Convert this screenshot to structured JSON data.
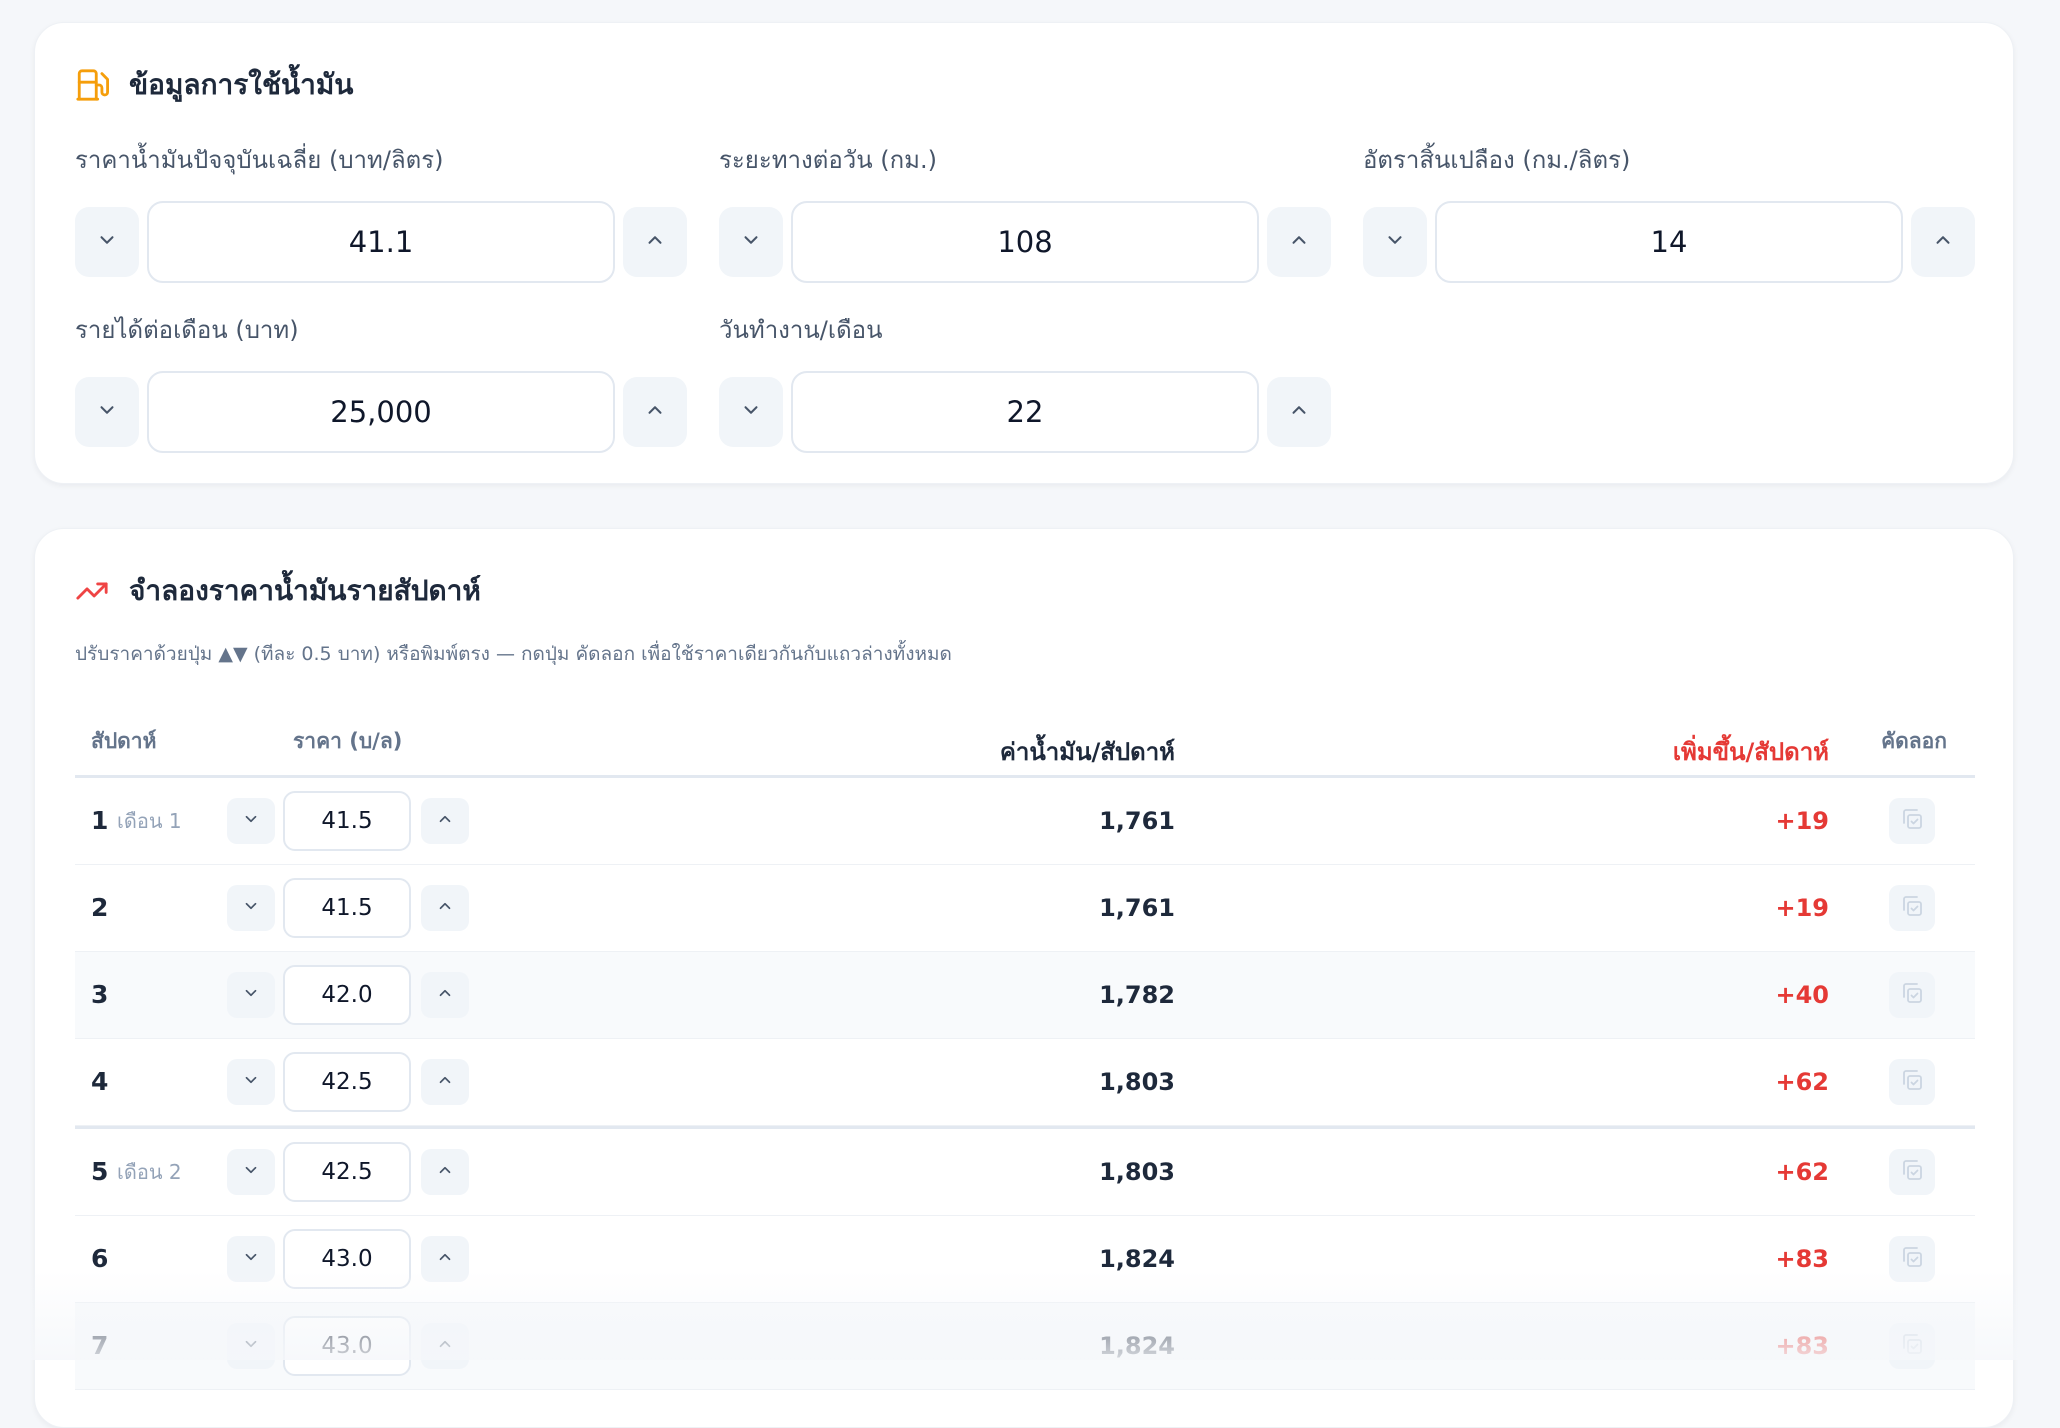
{
  "fuel_info": {
    "title": "ข้อมูลการใช้น้ำมัน",
    "fields": [
      {
        "label": "ราคาน้ำมันปัจจุบันเฉลี่ย (บาท/ลิตร)",
        "value": "41.1"
      },
      {
        "label": "ระยะทางต่อวัน (กม.)",
        "value": "108"
      },
      {
        "label": "อัตราสิ้นเปลือง (กม./ลิตร)",
        "value": "14"
      },
      {
        "label": "รายได้ต่อเดือน (บาท)",
        "value": "25,000"
      },
      {
        "label": "วันทำงาน/เดือน",
        "value": "22"
      }
    ]
  },
  "simulation": {
    "title": "จำลองราคาน้ำมันรายสัปดาห์",
    "helper": "ปรับราคาด้วยปุ่ม ▲▼ (ทีละ 0.5 บาท) หรือพิมพ์ตรง — กดปุ่ม คัดลอก เพื่อใช้ราคาเดียวกันกับแถวล่างทั้งหมด",
    "columns": {
      "week": "สัปดาห์",
      "price": "ราคา (บ/ล)",
      "cost": "ค่าน้ำมัน/สัปดาห์",
      "increase": "เพิ่มขึ้น/สัปดาห์",
      "copy": "คัดลอก"
    },
    "rows": [
      {
        "week": "1",
        "month": "เดือน 1",
        "price": "41.5",
        "cost": "1,761",
        "increase": "+19"
      },
      {
        "week": "2",
        "month": "",
        "price": "41.5",
        "cost": "1,761",
        "increase": "+19"
      },
      {
        "week": "3",
        "month": "",
        "price": "42.0",
        "cost": "1,782",
        "increase": "+40"
      },
      {
        "week": "4",
        "month": "",
        "price": "42.5",
        "cost": "1,803",
        "increase": "+62"
      },
      {
        "week": "5",
        "month": "เดือน 2",
        "price": "42.5",
        "cost": "1,803",
        "increase": "+62"
      },
      {
        "week": "6",
        "month": "",
        "price": "43.0",
        "cost": "1,824",
        "increase": "+83"
      },
      {
        "week": "7",
        "month": "",
        "price": "43.0",
        "cost": "1,824",
        "increase": "+83"
      }
    ]
  },
  "icons": {
    "fuel": "fuel-pump-icon",
    "trend": "trending-up-icon",
    "decrement": "chevron-down-icon",
    "increment": "chevron-up-icon",
    "copy": "copy-icon"
  },
  "colors": {
    "fuel_icon": "#f59e0b",
    "trend_icon": "#ef4444",
    "increase_text": "#e53935"
  }
}
